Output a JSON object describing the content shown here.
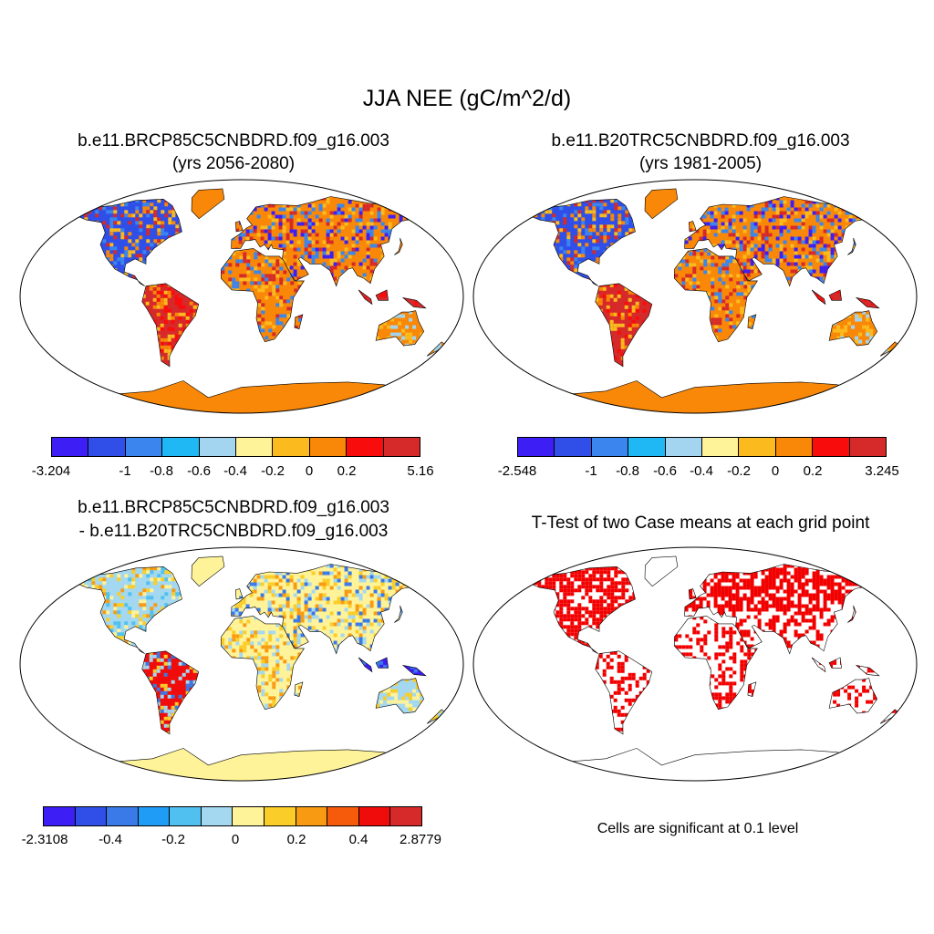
{
  "title": "JJA NEE (gC/m^2/d)",
  "panels": [
    {
      "id": "future",
      "title_line1": "b.e11.BRCP85C5CNBDRD.f09_g16.003",
      "title_line2": "(yrs 2056-2080)",
      "colorbar": {
        "colors": [
          "#3d1ef5",
          "#2f4fe8",
          "#3a86ee",
          "#1fb8f5",
          "#a3d5f0",
          "#fff39a",
          "#fbbb1f",
          "#f98808",
          "#f90c0c",
          "#d62a2a"
        ],
        "tick_labels": [
          "-3.204",
          "-1",
          "-0.8",
          "-0.6",
          "-0.4",
          "-0.2",
          "0",
          "0.2",
          "5.16"
        ]
      }
    },
    {
      "id": "historical",
      "title_line1": "b.e11.B20TRC5CNBDRD.f09_g16.003",
      "title_line2": "(yrs 1981-2005)",
      "colorbar": {
        "colors": [
          "#3d1ef5",
          "#2f4fe8",
          "#3a86ee",
          "#1fb8f5",
          "#a3d5f0",
          "#fff39a",
          "#fbbb1f",
          "#f98808",
          "#f90c0c",
          "#d62a2a"
        ],
        "tick_labels": [
          "-2.548",
          "-1",
          "-0.8",
          "-0.6",
          "-0.4",
          "-0.2",
          "0",
          "0.2",
          "3.245"
        ]
      }
    },
    {
      "id": "difference",
      "title_line1": "b.e11.BRCP85C5CNBDRD.f09_g16.003",
      "title_line2": "- b.e11.B20TRC5CNBDRD.f09_g16.003",
      "colorbar": {
        "colors": [
          "#3d1ef5",
          "#2f4fe8",
          "#3a7ae8",
          "#1f9cf5",
          "#4fc0f0",
          "#a3d8f0",
          "#fff39a",
          "#fbcd28",
          "#f99b12",
          "#f65b0c",
          "#f10c0c",
          "#d62a2a"
        ],
        "tick_labels": [
          "-2.3108",
          "-0.4",
          "-0.2",
          "0",
          "0.2",
          "0.4",
          "2.8779"
        ]
      }
    },
    {
      "id": "ttest",
      "title_line1": "T-Test of two Case means at each grid point",
      "note": "Cells are significant at 0.1 level"
    }
  ],
  "colors": {
    "significant": "#f20000",
    "antarctica_future": "#f98808",
    "antarctica_historical": "#f98808",
    "antarctica_difference": "#fff39a"
  }
}
